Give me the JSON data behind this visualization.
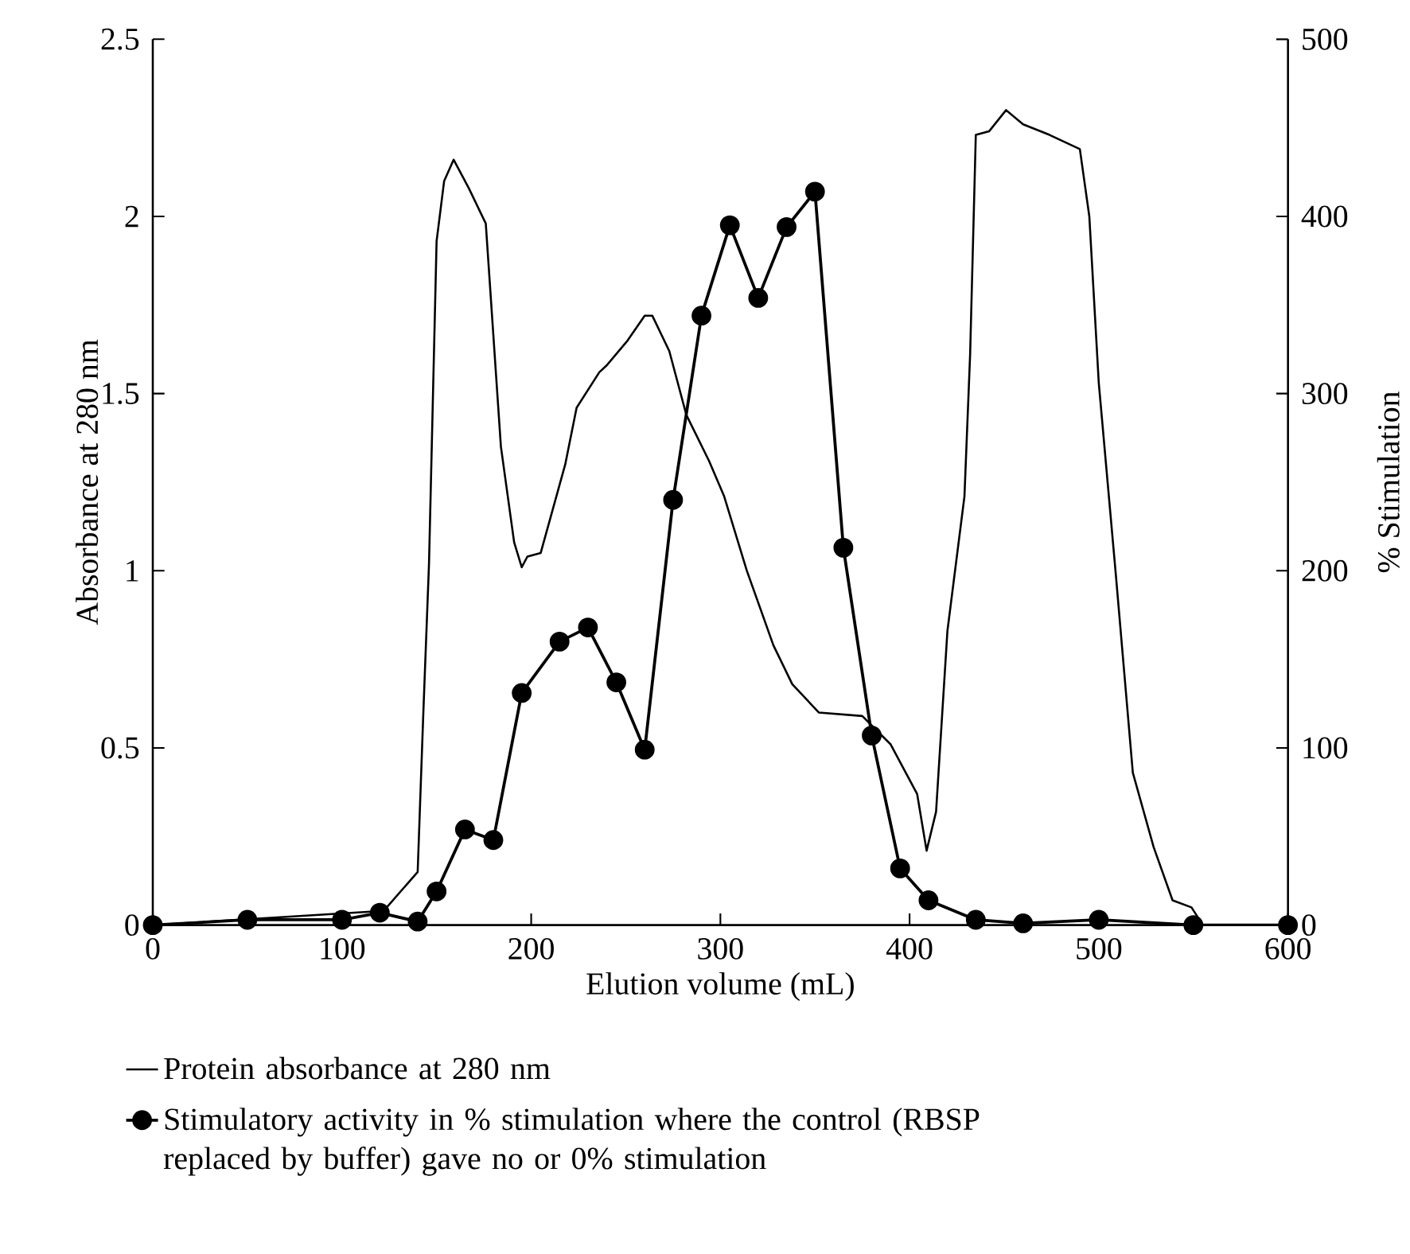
{
  "chart_data": {
    "type": "line",
    "xlabel": "Elution volume (mL)",
    "ylabel": "Absorbance at 280 nm",
    "y2label": "% Stimulation",
    "xlim": [
      0,
      600
    ],
    "xticks": [
      0,
      100,
      200,
      300,
      400,
      500,
      600
    ],
    "ylim": [
      0,
      2.5
    ],
    "yticks": [
      0,
      0.5,
      1,
      1.5,
      2,
      2.5
    ],
    "y2lim": [
      0,
      500
    ],
    "y2ticks": [
      0,
      100,
      200,
      300,
      400,
      500
    ],
    "legend": "bottom",
    "line_style": "solid",
    "series": [
      {
        "name": "Protein absorbance at 280 nm",
        "color": "#000000",
        "marker": "none",
        "x": [
          0,
          122,
          140,
          143,
          146,
          150,
          154,
          159,
          167,
          176,
          184,
          191,
          195,
          198,
          205,
          218,
          224,
          236,
          240,
          251,
          260,
          264,
          273,
          282,
          294,
          302,
          314,
          328,
          338,
          352,
          375,
          390,
          404,
          409,
          414,
          420,
          429,
          432,
          435,
          442,
          451,
          460,
          474,
          490,
          495,
          500,
          509,
          518,
          529,
          539,
          549,
          555,
          600
        ],
        "values": [
          0,
          0.04,
          0.15,
          0.6,
          1.02,
          1.93,
          2.1,
          2.16,
          2.08,
          1.98,
          1.35,
          1.08,
          1.01,
          1.04,
          1.05,
          1.3,
          1.46,
          1.56,
          1.58,
          1.65,
          1.72,
          1.72,
          1.62,
          1.44,
          1.31,
          1.21,
          1.0,
          0.79,
          0.68,
          0.6,
          0.59,
          0.51,
          0.37,
          0.21,
          0.32,
          0.83,
          1.21,
          1.61,
          2.23,
          2.24,
          2.3,
          2.26,
          2.23,
          2.19,
          2.0,
          1.53,
          0.99,
          0.43,
          0.22,
          0.07,
          0.05,
          0,
          0
        ]
      },
      {
        "name": "Stimulatory activity in % stimulation where the control (RBSP replaced by buffer) gave no or 0% stimulation",
        "color": "#000000",
        "marker": "circle",
        "axis": "y2",
        "x": [
          0,
          50,
          100,
          120,
          140,
          150,
          165,
          180,
          195,
          215,
          230,
          245,
          260,
          275,
          290,
          305,
          320,
          335,
          350,
          365,
          380,
          395,
          410,
          435,
          460,
          500,
          550,
          600
        ],
        "values": [
          0,
          3,
          3,
          7,
          2,
          19,
          54,
          48,
          131,
          160,
          168,
          137,
          99,
          240,
          344,
          395,
          354,
          394,
          414,
          213,
          107,
          32,
          14,
          3,
          1,
          3,
          0,
          0
        ]
      }
    ]
  }
}
